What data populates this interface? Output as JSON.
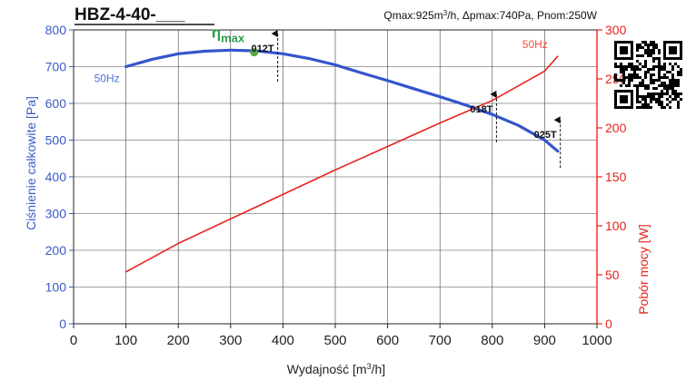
{
  "chart_data": {
    "type": "line",
    "title": "HBZ-4-40-___",
    "subtitle_parts": {
      "q": "Qmax:925m",
      "q_sup": "3",
      "rest": "/h, Δpmax:740Pa, Pnom:250W"
    },
    "xlabel_parts": {
      "pre": "Wydajność [m",
      "sup": "3",
      "post": "/h]"
    },
    "ylabel_left": "Ciśnienie całkowite [Pa]",
    "ylabel_right": "Pobór mocy [W]",
    "xlim": [
      0,
      1000
    ],
    "ylim_left": [
      0,
      800
    ],
    "ylim_right": [
      0,
      300
    ],
    "grid": true,
    "x_ticks": [
      "0",
      "100",
      "200",
      "300",
      "400",
      "500",
      "600",
      "700",
      "800",
      "900",
      "1000"
    ],
    "y_left_ticks": [
      "0",
      "100",
      "200",
      "300",
      "400",
      "500",
      "600",
      "700",
      "800"
    ],
    "y_right_ticks": [
      "0",
      "50",
      "100",
      "150",
      "200",
      "250",
      "300"
    ],
    "series": [
      {
        "name": "50Hz",
        "axis": "left",
        "color": "#3355cc",
        "x": [
          100,
          150,
          200,
          250,
          300,
          350,
          400,
          450,
          500,
          550,
          600,
          650,
          700,
          750,
          800,
          850,
          900,
          925
        ],
        "y": [
          700,
          720,
          735,
          742,
          745,
          743,
          735,
          722,
          705,
          683,
          662,
          640,
          618,
          595,
          570,
          540,
          500,
          470
        ]
      },
      {
        "name": "50Hz",
        "axis": "right",
        "color": "#e8231e",
        "x": [
          100,
          200,
          300,
          400,
          500,
          600,
          700,
          800,
          900,
          925
        ],
        "y": [
          53,
          82,
          107,
          132,
          157,
          181,
          205,
          228,
          258,
          273
        ]
      }
    ],
    "annotations": [
      {
        "label": "012T",
        "x": 390,
        "y": 790
      },
      {
        "label": "018T",
        "x": 808,
        "y": 625
      },
      {
        "label": "025T",
        "x": 930,
        "y": 555
      }
    ],
    "eta_max": {
      "label_main": "η",
      "label_sub": "max",
      "x": 345,
      "y": 744,
      "color": "#55aa44"
    }
  }
}
